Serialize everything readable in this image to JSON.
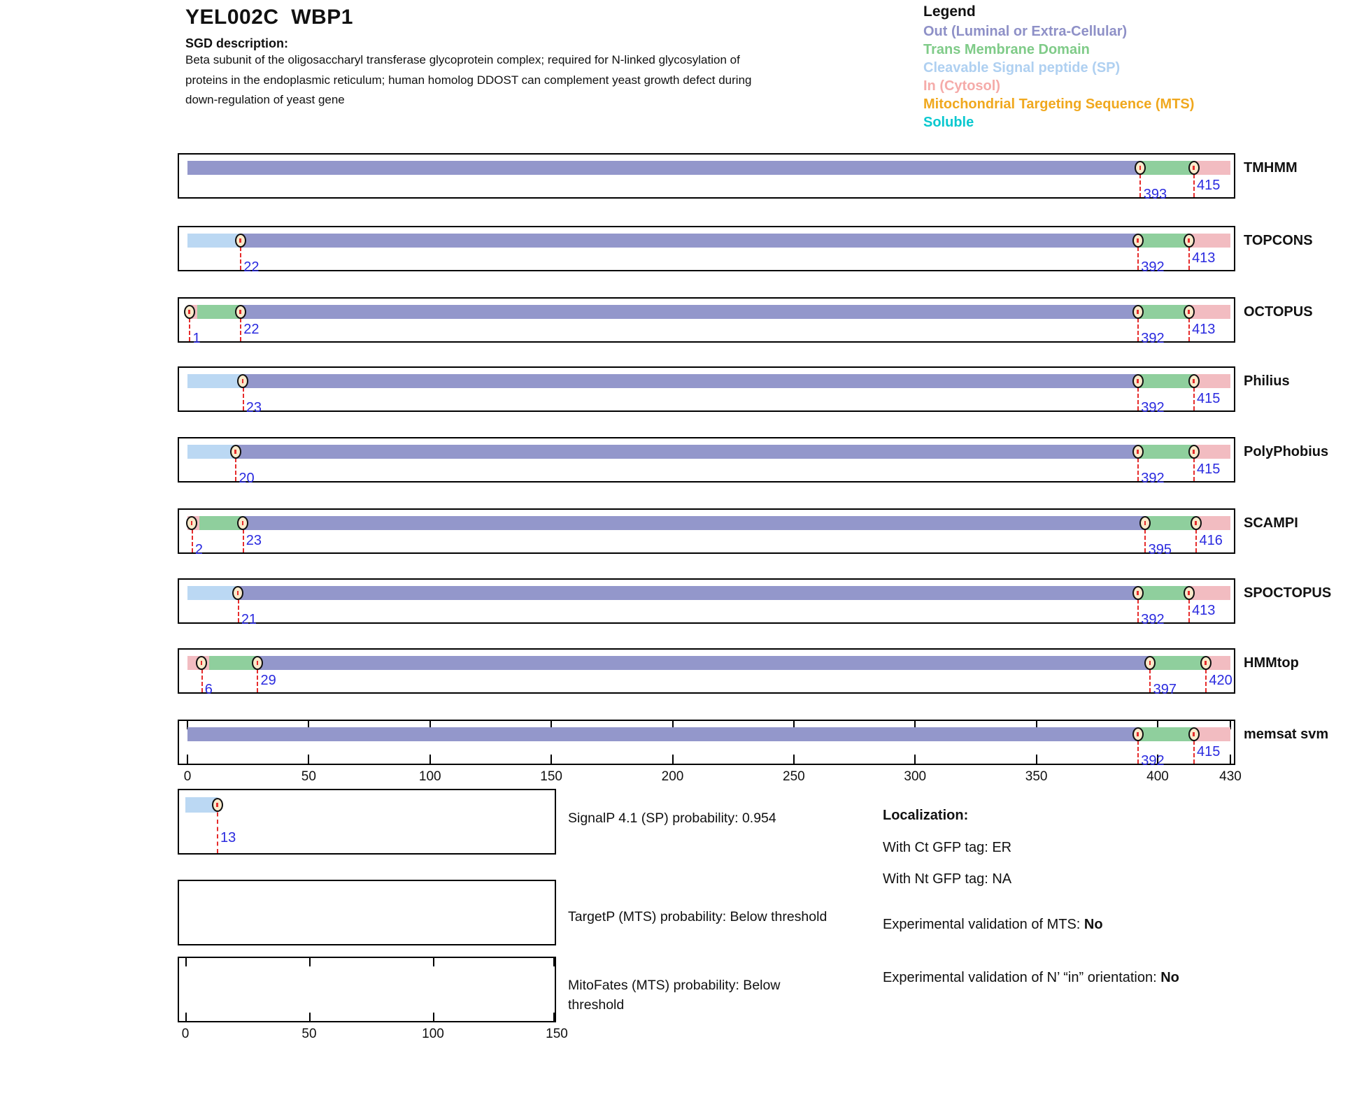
{
  "header": {
    "title": "YEL002C  WBP1",
    "sgd_label": "SGD description:",
    "description": "Beta subunit of the oligosaccharyl transferase glycoprotein complex; required for N-linked glycosylation of proteins in the endoplasmic reticulum; human homolog DDOST can complement yeast growth defect during down-regulation of yeast gene"
  },
  "legend": {
    "title": "Legend",
    "items": [
      {
        "key": "out",
        "label": "Out (Luminal or Extra-Cellular)",
        "color": "#8E90C7"
      },
      {
        "key": "tm",
        "label": "Trans Membrane Domain",
        "color": "#7FCB88"
      },
      {
        "key": "sp",
        "label": "Cleavable Signal peptide (SP)",
        "color": "#AFD0F1"
      },
      {
        "key": "in",
        "label": "In (Cytosol)",
        "color": "#F5ABA9"
      },
      {
        "key": "mts",
        "label": "Mitochondrial Targeting Sequence (MTS)",
        "color": "#F0A81E"
      },
      {
        "key": "soluble",
        "label": "Soluble",
        "color": "#0AC8CF"
      }
    ]
  },
  "colors": {
    "out": "#9397CB",
    "tm": "#8FCF9D",
    "sp": "#BBD8F3",
    "in": "#F2BCC1",
    "marker_fill": "#F9EACB",
    "line_red": "#E62C2C",
    "number_blue": "#2A2ADF",
    "tick_black": "#000000"
  },
  "chart_data": {
    "type": "span-track",
    "x_axis": {
      "min": 0,
      "max": 430,
      "ticks": [
        0,
        50,
        100,
        150,
        200,
        250,
        300,
        350,
        400,
        430
      ]
    },
    "tracks": [
      {
        "label": "TMHMM",
        "segments": [
          {
            "start": 0,
            "end": 393,
            "type": "out"
          },
          {
            "start": 393,
            "end": 415,
            "type": "tm"
          },
          {
            "start": 415,
            "end": 430,
            "type": "in"
          }
        ],
        "markers": [
          {
            "pos": 393,
            "label": "393",
            "level": "lower"
          },
          {
            "pos": 415,
            "label": "415",
            "level": "upper"
          }
        ],
        "axis_ticks": false
      },
      {
        "label": "TOPCONS",
        "segments": [
          {
            "start": 0,
            "end": 22,
            "type": "sp"
          },
          {
            "start": 22,
            "end": 392,
            "type": "out"
          },
          {
            "start": 392,
            "end": 413,
            "type": "tm"
          },
          {
            "start": 413,
            "end": 430,
            "type": "in"
          }
        ],
        "markers": [
          {
            "pos": 22,
            "label": "22",
            "level": "lower"
          },
          {
            "pos": 392,
            "label": "392",
            "level": "lower"
          },
          {
            "pos": 413,
            "label": "413",
            "level": "upper"
          }
        ],
        "axis_ticks": false
      },
      {
        "label": "OCTOPUS",
        "segments": [
          {
            "start": 0,
            "end": 4,
            "type": "in"
          },
          {
            "start": 4,
            "end": 22,
            "type": "tm"
          },
          {
            "start": 22,
            "end": 392,
            "type": "out"
          },
          {
            "start": 392,
            "end": 413,
            "type": "tm"
          },
          {
            "start": 413,
            "end": 430,
            "type": "in"
          }
        ],
        "markers": [
          {
            "pos": 1,
            "label": "1",
            "level": "lower"
          },
          {
            "pos": 22,
            "label": "22",
            "level": "upper"
          },
          {
            "pos": 392,
            "label": "392",
            "level": "lower"
          },
          {
            "pos": 413,
            "label": "413",
            "level": "upper"
          }
        ],
        "axis_ticks": false
      },
      {
        "label": "Philius",
        "segments": [
          {
            "start": 0,
            "end": 23,
            "type": "sp"
          },
          {
            "start": 23,
            "end": 392,
            "type": "out"
          },
          {
            "start": 392,
            "end": 415,
            "type": "tm"
          },
          {
            "start": 415,
            "end": 430,
            "type": "in"
          }
        ],
        "markers": [
          {
            "pos": 23,
            "label": "23",
            "level": "lower"
          },
          {
            "pos": 392,
            "label": "392",
            "level": "lower"
          },
          {
            "pos": 415,
            "label": "415",
            "level": "upper"
          }
        ],
        "axis_ticks": false
      },
      {
        "label": "PolyPhobius",
        "segments": [
          {
            "start": 0,
            "end": 20,
            "type": "sp"
          },
          {
            "start": 20,
            "end": 392,
            "type": "out"
          },
          {
            "start": 392,
            "end": 415,
            "type": "tm"
          },
          {
            "start": 415,
            "end": 430,
            "type": "in"
          }
        ],
        "markers": [
          {
            "pos": 20,
            "label": "20",
            "level": "lower"
          },
          {
            "pos": 392,
            "label": "392",
            "level": "lower"
          },
          {
            "pos": 415,
            "label": "415",
            "level": "upper"
          }
        ],
        "axis_ticks": false
      },
      {
        "label": "SCAMPI",
        "segments": [
          {
            "start": 0,
            "end": 5,
            "type": "in"
          },
          {
            "start": 5,
            "end": 23,
            "type": "tm"
          },
          {
            "start": 23,
            "end": 395,
            "type": "out"
          },
          {
            "start": 395,
            "end": 416,
            "type": "tm"
          },
          {
            "start": 416,
            "end": 430,
            "type": "in"
          }
        ],
        "markers": [
          {
            "pos": 2,
            "label": "2",
            "level": "lower"
          },
          {
            "pos": 23,
            "label": "23",
            "level": "upper"
          },
          {
            "pos": 395,
            "label": "395",
            "level": "lower"
          },
          {
            "pos": 416,
            "label": "416",
            "level": "upper"
          }
        ],
        "axis_ticks": false
      },
      {
        "label": "SPOCTOPUS",
        "segments": [
          {
            "start": 0,
            "end": 21,
            "type": "sp"
          },
          {
            "start": 21,
            "end": 392,
            "type": "out"
          },
          {
            "start": 392,
            "end": 413,
            "type": "tm"
          },
          {
            "start": 413,
            "end": 430,
            "type": "in"
          }
        ],
        "markers": [
          {
            "pos": 21,
            "label": "21",
            "level": "lower"
          },
          {
            "pos": 392,
            "label": "392",
            "level": "lower"
          },
          {
            "pos": 413,
            "label": "413",
            "level": "upper"
          }
        ],
        "axis_ticks": false
      },
      {
        "label": "HMMtop",
        "segments": [
          {
            "start": 0,
            "end": 9,
            "type": "in"
          },
          {
            "start": 9,
            "end": 29,
            "type": "tm"
          },
          {
            "start": 29,
            "end": 397,
            "type": "out"
          },
          {
            "start": 397,
            "end": 420,
            "type": "tm"
          },
          {
            "start": 420,
            "end": 430,
            "type": "in"
          }
        ],
        "markers": [
          {
            "pos": 6,
            "label": "6",
            "level": "lower"
          },
          {
            "pos": 29,
            "label": "29",
            "level": "upper"
          },
          {
            "pos": 397,
            "label": "397",
            "level": "lower"
          },
          {
            "pos": 420,
            "label": "420",
            "level": "upper"
          }
        ],
        "axis_ticks": false
      },
      {
        "label": "memsat svm",
        "segments": [
          {
            "start": 0,
            "end": 392,
            "type": "out"
          },
          {
            "start": 392,
            "end": 415,
            "type": "tm"
          },
          {
            "start": 415,
            "end": 430,
            "type": "in"
          }
        ],
        "markers": [
          {
            "pos": 392,
            "label": "392",
            "level": "lower"
          },
          {
            "pos": 415,
            "label": "415",
            "level": "upper"
          }
        ],
        "axis_ticks": true
      }
    ],
    "signalp_track": {
      "segments": [
        {
          "start": 0,
          "end": 13,
          "type": "sp"
        }
      ],
      "markers": [
        {
          "pos": 13,
          "label": "13",
          "level": "lower"
        }
      ]
    },
    "small_axis": {
      "min": 0,
      "max": 150,
      "ticks": [
        0,
        50,
        100,
        150
      ]
    }
  },
  "bottom": {
    "signalp_text": "SignalP 4.1 (SP) probability: 0.954",
    "targetp_text": "TargetP (MTS) probability: Below threshold",
    "mitofates_text": "MitoFates (MTS) probability: Below threshold"
  },
  "info": {
    "title": "Localization:",
    "ct_line": "With Ct GFP tag: ER",
    "nt_line": "With Nt GFP tag: NA",
    "mts_prefix": "Experimental validation of MTS: ",
    "mts_value": "No",
    "orient_prefix": "Experimental validation of N’ “in” orientation: ",
    "orient_value": "No"
  }
}
